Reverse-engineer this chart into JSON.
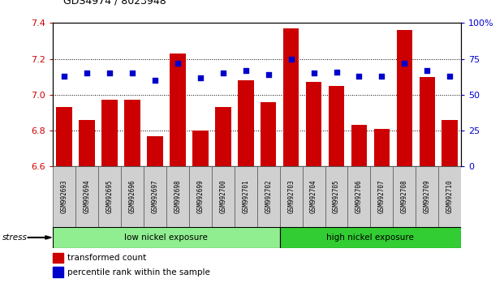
{
  "title": "GDS4974 / 8023948",
  "samples": [
    "GSM992693",
    "GSM992694",
    "GSM992695",
    "GSM992696",
    "GSM992697",
    "GSM992698",
    "GSM992699",
    "GSM992700",
    "GSM992701",
    "GSM992702",
    "GSM992703",
    "GSM992704",
    "GSM992705",
    "GSM992706",
    "GSM992707",
    "GSM992708",
    "GSM992709",
    "GSM992710"
  ],
  "transformed_count": [
    6.93,
    6.86,
    6.97,
    6.97,
    6.77,
    7.23,
    6.8,
    6.93,
    7.08,
    6.96,
    7.37,
    7.07,
    7.05,
    6.83,
    6.81,
    7.36,
    7.1,
    6.86
  ],
  "percentile_rank": [
    63,
    65,
    65,
    65,
    60,
    72,
    62,
    65,
    67,
    64,
    75,
    65,
    66,
    63,
    63,
    72,
    67,
    63
  ],
  "ylim_left": [
    6.6,
    7.4
  ],
  "ylim_right": [
    0,
    100
  ],
  "bar_color": "#cc0000",
  "dot_color": "#0000cc",
  "bg_plot": "#ffffff",
  "group1_label": "low nickel exposure",
  "group2_label": "high nickel exposure",
  "group1_color": "#90ee90",
  "group2_color": "#32cd32",
  "group1_count": 10,
  "group2_count": 8,
  "stress_label": "stress",
  "yticks_left": [
    6.6,
    6.8,
    7.0,
    7.2,
    7.4
  ],
  "yticks_right": [
    0,
    25,
    50,
    75,
    100
  ],
  "legend_bar_label": "transformed count",
  "legend_dot_label": "percentile rank within the sample"
}
